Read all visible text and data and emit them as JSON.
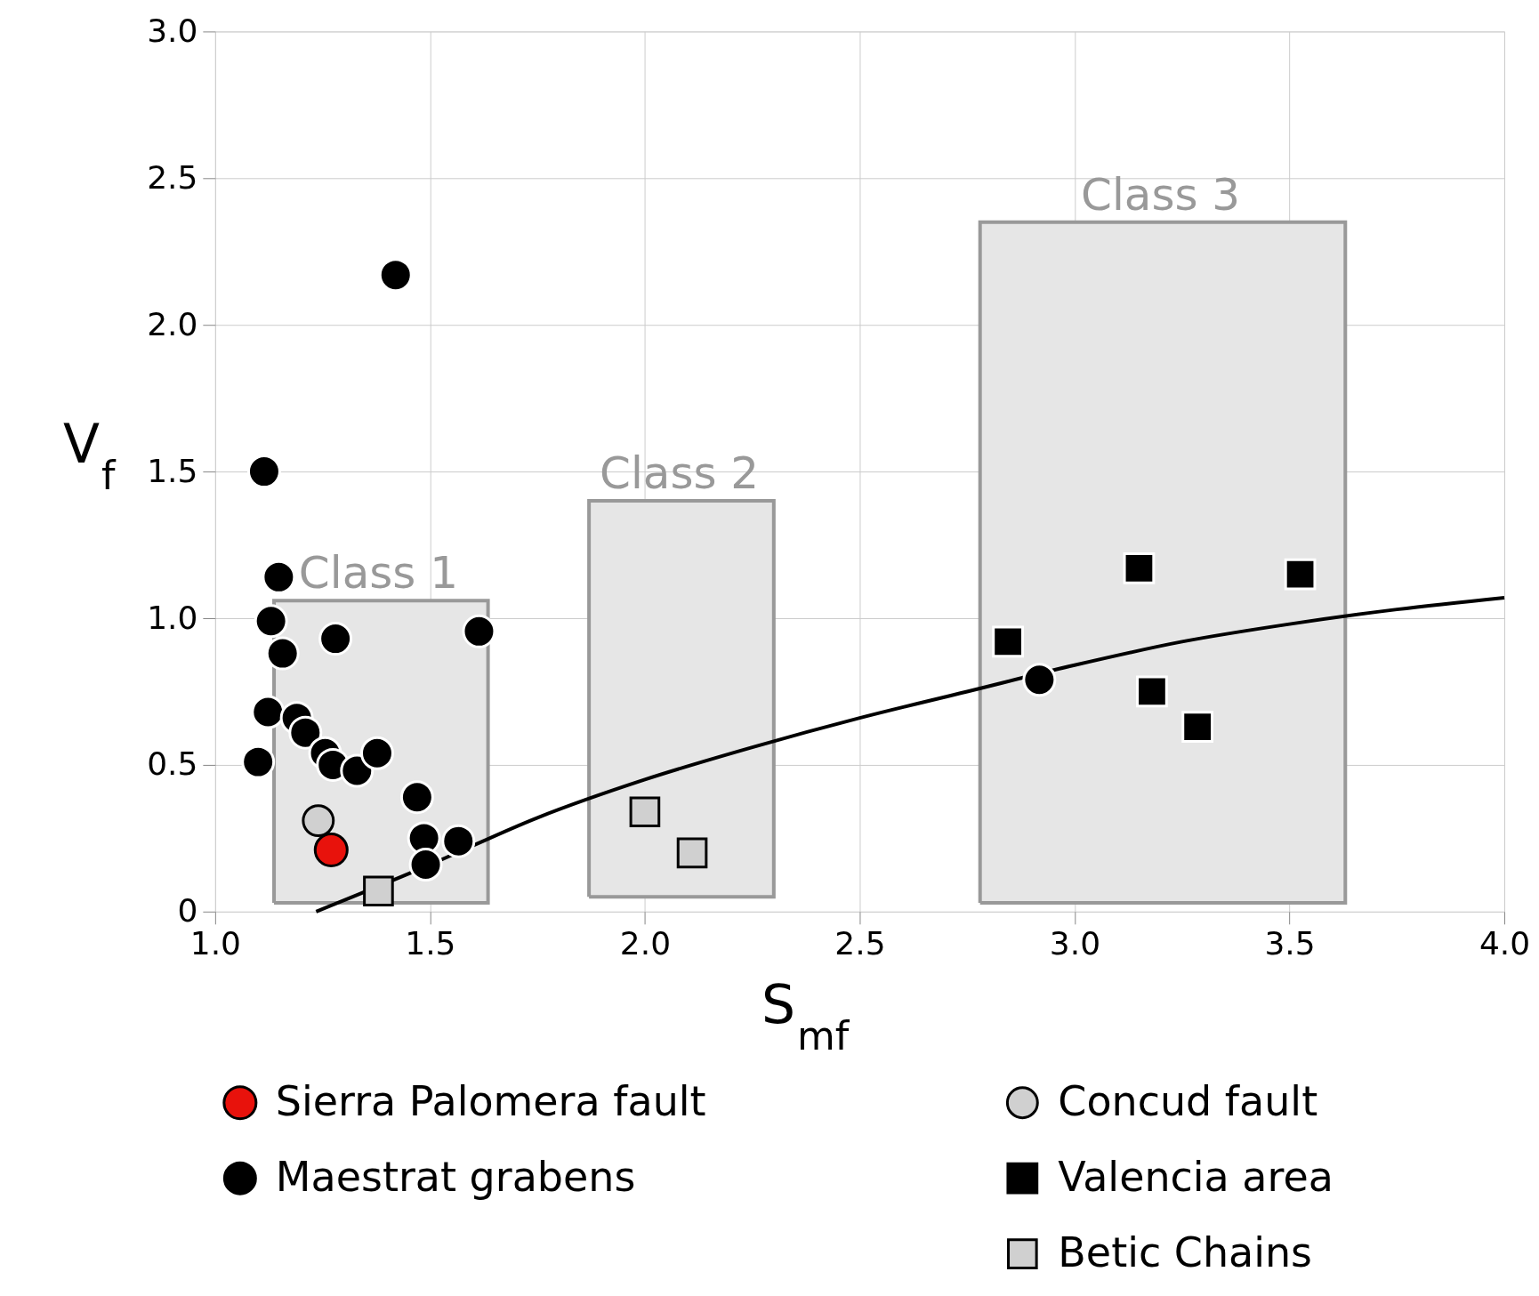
{
  "chart_data": {
    "type": "scatter",
    "xlabel": "S$_{mf}$",
    "ylabel": "V$_{f}$",
    "xlim": [
      1.0,
      4.0
    ],
    "ylim": [
      0,
      3.0
    ],
    "xticks": [
      {
        "value": 1,
        "label": "1.0"
      },
      1.5,
      {
        "value": 2,
        "label": "2.0"
      },
      2.5,
      {
        "value": 3,
        "label": "3.0"
      },
      3.5,
      {
        "value": 4,
        "label": "4.0"
      }
    ],
    "yticks": [
      0,
      0.5,
      {
        "value": 1,
        "label": "1.0"
      },
      1.5,
      {
        "value": 2,
        "label": "2.0"
      },
      2.5,
      {
        "value": 3,
        "label": "3.0"
      }
    ],
    "grid": true,
    "legend": "bottom",
    "series": [
      {
        "type": "area",
        "color": "#e6e6e6",
        "x": [
          1.137,
          1.137,
          1.635,
          1.635,
          1.137
        ],
        "values": [
          0.03,
          1.06,
          1.06,
          0.03,
          0.03
        ]
      },
      {
        "type": "area",
        "color": "#e6e6e6",
        "x": [
          1.87,
          1.87,
          2.3,
          2.3,
          1.87
        ],
        "values": [
          0.05,
          1.4,
          1.4,
          0.05,
          0.05
        ]
      },
      {
        "type": "area",
        "color": "#e6e6e6",
        "x": [
          2.78,
          2.78,
          3.63,
          3.63,
          2.78
        ],
        "values": [
          0.03,
          2.35,
          2.35,
          0.03,
          0.03
        ]
      },
      {
        "type": "line",
        "color": "#000000",
        "x": [
          1.235,
          1.5,
          1.75,
          2.0,
          2.25,
          2.5,
          2.75,
          3.0,
          3.25,
          3.5,
          3.75,
          4.0
        ],
        "values": [
          0.0,
          0.16,
          0.32,
          0.45,
          0.56,
          0.66,
          0.75,
          0.84,
          0.92,
          0.98,
          1.03,
          1.07
        ]
      },
      {
        "name": "Sierra Palomera fault",
        "color": "#e8120c",
        "marker": "circle",
        "x": [
          1.27
        ],
        "values": [
          0.21
        ]
      },
      {
        "name": "Maestrat grabens",
        "color": "#000000",
        "marker": "circle",
        "x": [
          1.42,
          1.114,
          1.148,
          1.13,
          1.157,
          1.28,
          1.614,
          1.123,
          1.19,
          1.21,
          1.256,
          1.274,
          1.33,
          1.377,
          1.1,
          1.47,
          1.486,
          1.566,
          1.49,
          2.918
        ],
        "values": [
          2.17,
          1.5,
          1.14,
          0.99,
          0.88,
          0.93,
          0.955,
          0.68,
          0.66,
          0.61,
          0.54,
          0.5,
          0.48,
          0.54,
          0.51,
          0.39,
          0.25,
          0.24,
          0.16,
          0.79
        ]
      },
      {
        "name": "Concud fault",
        "color": "#d0d0d0",
        "marker": "circle",
        "x": [
          1.24
        ],
        "values": [
          0.31
        ]
      },
      {
        "name": "Valencia area",
        "color": "#000000",
        "marker": "square",
        "x": [
          2.845,
          3.15,
          3.525,
          3.18,
          3.286
        ],
        "values": [
          0.92,
          1.17,
          1.15,
          0.75,
          0.63
        ]
      },
      {
        "name": "Betic Chains",
        "color": "#d0d0d0",
        "marker": "square",
        "x": [
          1.38,
          2.0,
          2.11
        ],
        "values": [
          0.07,
          0.34,
          0.2
        ]
      }
    ],
    "annotations": [
      {
        "text": "Class 1",
        "x": 1.38,
        "y": 1.06
      },
      {
        "text": "Class 2",
        "x": 2.08,
        "y": 1.4
      },
      {
        "text": "Class 3",
        "x": 3.2,
        "y": 2.35
      }
    ]
  }
}
